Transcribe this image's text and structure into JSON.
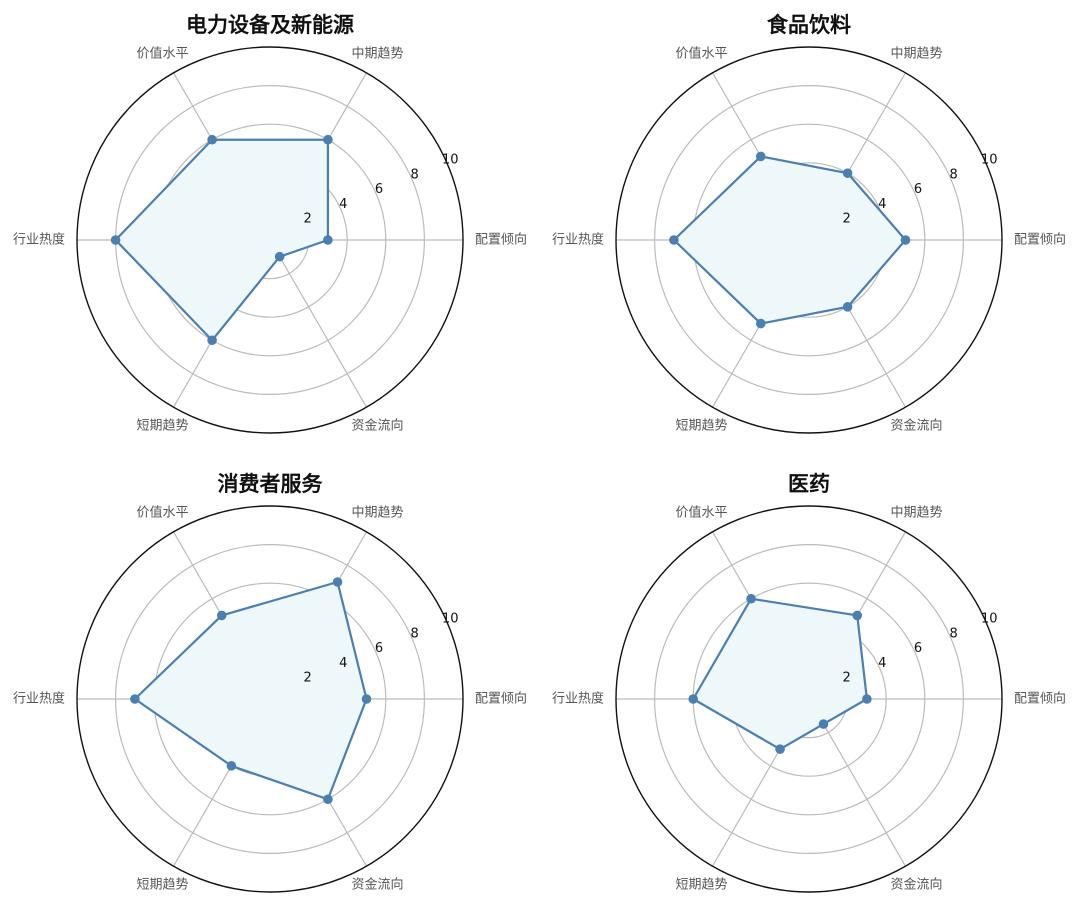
{
  "chart_data": [
    {
      "type": "radar",
      "title": "电力设备及新能源",
      "axes": [
        "配置倾向",
        "中期趋势",
        "价值水平",
        "行业热度",
        "短期趋势",
        "资金流向"
      ],
      "values": [
        3,
        6,
        6,
        8,
        6,
        1
      ],
      "rlim": [
        0,
        10
      ],
      "rticks": [
        2,
        4,
        6,
        8,
        10
      ],
      "grid": true,
      "colors": {
        "line": "#4a7fb0",
        "fill": "#eef8fb",
        "grid": "#bbbbbb",
        "frame": "#111111"
      }
    },
    {
      "type": "radar",
      "title": "食品饮料",
      "axes": [
        "配置倾向",
        "中期趋势",
        "价值水平",
        "行业热度",
        "短期趋势",
        "资金流向"
      ],
      "values": [
        5,
        4,
        5,
        7,
        5,
        4
      ],
      "rlim": [
        0,
        10
      ],
      "rticks": [
        2,
        4,
        6,
        8,
        10
      ],
      "grid": true,
      "colors": {
        "line": "#4a7fb0",
        "fill": "#eef8fb",
        "grid": "#bbbbbb",
        "frame": "#111111"
      }
    },
    {
      "type": "radar",
      "title": "消费者服务",
      "axes": [
        "配置倾向",
        "中期趋势",
        "价值水平",
        "行业热度",
        "短期趋势",
        "资金流向"
      ],
      "values": [
        5,
        7,
        5,
        7,
        4,
        6
      ],
      "rlim": [
        0,
        10
      ],
      "rticks": [
        2,
        4,
        6,
        8,
        10
      ],
      "grid": true,
      "colors": {
        "line": "#4a7fb0",
        "fill": "#eef8fb",
        "grid": "#bbbbbb",
        "frame": "#111111"
      }
    },
    {
      "type": "radar",
      "title": "医药",
      "axes": [
        "配置倾向",
        "中期趋势",
        "价值水平",
        "行业热度",
        "短期趋势",
        "资金流向"
      ],
      "values": [
        3,
        5,
        6,
        6,
        3,
        1.5
      ],
      "rlim": [
        0,
        10
      ],
      "rticks": [
        2,
        4,
        6,
        8,
        10
      ],
      "grid": true,
      "colors": {
        "line": "#4a7fb0",
        "fill": "#eef8fb",
        "grid": "#bbbbbb",
        "frame": "#111111"
      }
    }
  ]
}
